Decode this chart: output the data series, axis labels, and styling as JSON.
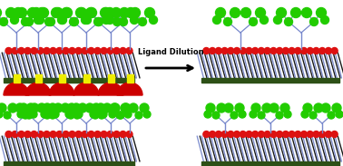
{
  "bg_color": "#ffffff",
  "title_text": "Ligand Dilution",
  "surface_color": "#2d5016",
  "pillar_dark": "#1a1a1a",
  "pillar_blue": "#7788cc",
  "red_dot_color": "#dd1111",
  "green_dot_color": "#22cc00",
  "yellow_color": "#eeee00",
  "lectin_color": "#cc0000",
  "figw": 3.78,
  "figh": 1.83,
  "dpi": 100
}
